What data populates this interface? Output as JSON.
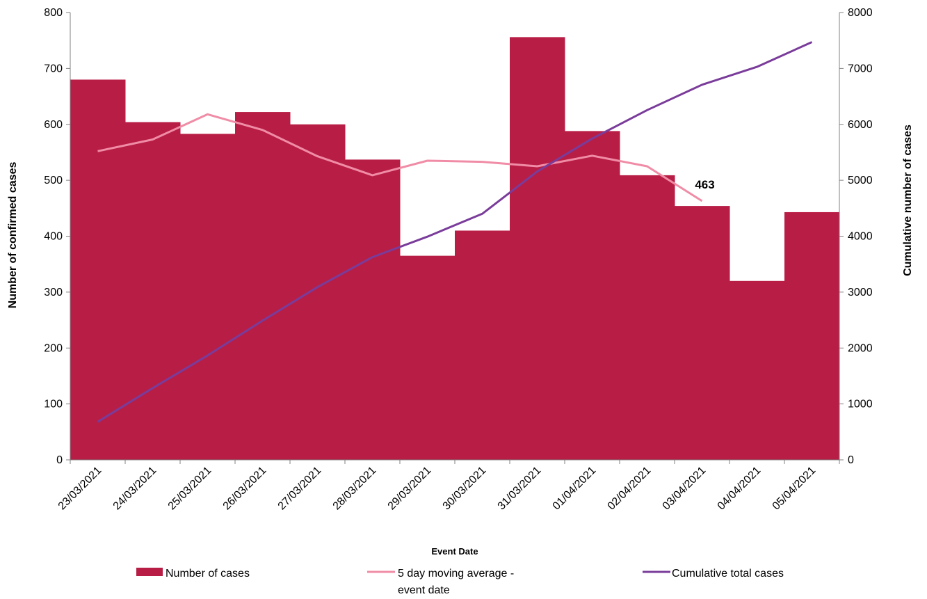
{
  "chart_data": {
    "type": "bar",
    "categories": [
      "23/03/2021",
      "24/03/2021",
      "25/03/2021",
      "26/03/2021",
      "27/03/2021",
      "28/03/2021",
      "29/03/2021",
      "30/03/2021",
      "31/03/2021",
      "01/04/2021",
      "02/04/2021",
      "03/04/2021",
      "04/04/2021",
      "05/04/2021"
    ],
    "series": [
      {
        "name": "Number of cases",
        "type": "bar",
        "axis": "left",
        "color": "#B81D45",
        "values": [
          680,
          604,
          583,
          622,
          600,
          537,
          365,
          410,
          756,
          588,
          509,
          454,
          320,
          443
        ]
      },
      {
        "name": "5 day moving average - event date",
        "type": "line",
        "axis": "left",
        "color": "#F08CA6",
        "values": [
          552,
          573,
          618,
          590,
          543,
          509,
          535,
          533,
          525,
          544,
          525,
          463,
          null,
          null
        ]
      },
      {
        "name": "Cumulative total cases",
        "type": "line",
        "axis": "right",
        "color": "#7A3C9A",
        "values": [
          680,
          1284,
          1867,
          2489,
          3089,
          3626,
          3991,
          4401,
          5157,
          5745,
          6254,
          6708,
          7028,
          7471
        ]
      }
    ],
    "xlabel": "Event Date",
    "ylabel": "Number of confirmed cases",
    "y2label": "Cumulative number of cases",
    "ylim": [
      0,
      800
    ],
    "y2lim": [
      0,
      8000
    ],
    "yticks": [
      "0",
      "100",
      "200",
      "300",
      "400",
      "500",
      "600",
      "700",
      "800"
    ],
    "y2ticks": [
      "0",
      "1000",
      "2000",
      "3000",
      "4000",
      "5000",
      "6000",
      "7000",
      "8000"
    ],
    "annotations": [
      {
        "text": "463",
        "series": "5 day moving average - event date",
        "category": "03/04/2021"
      }
    ],
    "legend": {
      "placement": "bottom",
      "items": [
        "Number of cases",
        "5 day moving average -",
        "event date",
        "Cumulative total cases"
      ]
    },
    "grid": false
  }
}
